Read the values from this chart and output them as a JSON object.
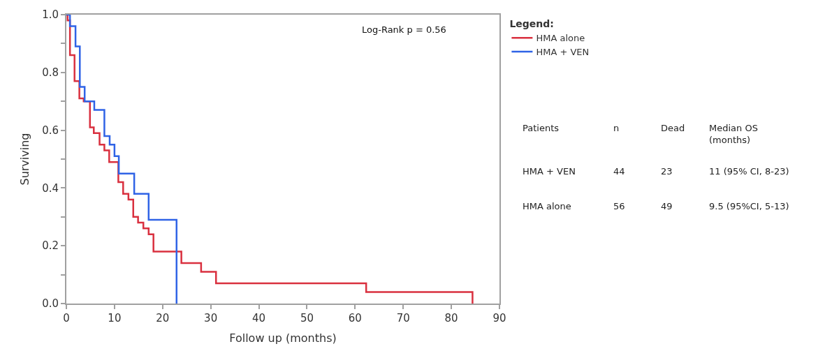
{
  "chart_data": {
    "type": "step",
    "xlabel": "Follow up (months)",
    "ylabel": "Surviving",
    "legend_title": "Legend:",
    "xlim": [
      0,
      90
    ],
    "xticks": [
      0,
      10,
      20,
      30,
      40,
      50,
      60,
      70,
      80,
      90
    ],
    "ylim": [
      0,
      1.0
    ],
    "yticks": [
      {
        "value": 0,
        "label": "0.0"
      },
      {
        "value": 0.1,
        "label": null
      },
      {
        "value": 0.2,
        "label": "0.2"
      },
      {
        "value": 0.3,
        "label": null
      },
      {
        "value": 0.4,
        "label": "0.4"
      },
      {
        "value": 0.5,
        "label": null
      },
      {
        "value": 0.6,
        "label": "0.6"
      },
      {
        "value": 0.7,
        "label": null
      },
      {
        "value": 0.8,
        "label": "0.8"
      },
      {
        "value": 0.9,
        "label": null
      },
      {
        "value": 1.0,
        "label": "1.0"
      }
    ],
    "legend": "right",
    "marker": "none",
    "line_style": "solid",
    "series": [
      {
        "name": "HMA alone",
        "color": "#d9303f",
        "x": [
          0,
          0.25,
          0.75,
          1.7,
          2.7,
          3.6,
          4.9,
          5.7,
          6.9,
          7.9,
          8.9,
          10.8,
          11.8,
          12.9,
          13.9,
          14.9,
          16.0,
          17.1,
          18.1,
          23.9,
          28.0,
          31.1,
          62.3,
          84.4
        ],
        "values": [
          1.0,
          0.98,
          0.86,
          0.77,
          0.71,
          0.7,
          0.61,
          0.59,
          0.55,
          0.53,
          0.49,
          0.42,
          0.38,
          0.36,
          0.3,
          0.28,
          0.26,
          0.24,
          0.18,
          0.14,
          0.11,
          0.07,
          0.04,
          0
        ]
      },
      {
        "name": "HMA + VEN",
        "color": "#2f63e6",
        "x": [
          0,
          0.75,
          1.9,
          2.8,
          3.8,
          5.8,
          7.9,
          9.0,
          10.0,
          10.9,
          14.1,
          17.1,
          22.9
        ],
        "values": [
          1.0,
          0.96,
          0.89,
          0.75,
          0.7,
          0.67,
          0.58,
          0.55,
          0.51,
          0.45,
          0.38,
          0.29,
          0
        ]
      }
    ],
    "annotations": [
      "Log-Rank p = 0.56",
      "Patients",
      "n",
      "Dead",
      "Median OS\n(months)",
      "HMA + VEN",
      "44",
      "23",
      "11 (95% CI, 8-23)",
      "HMA alone",
      "56",
      "49",
      "9.5 (95%CI, 5-13)"
    ]
  }
}
